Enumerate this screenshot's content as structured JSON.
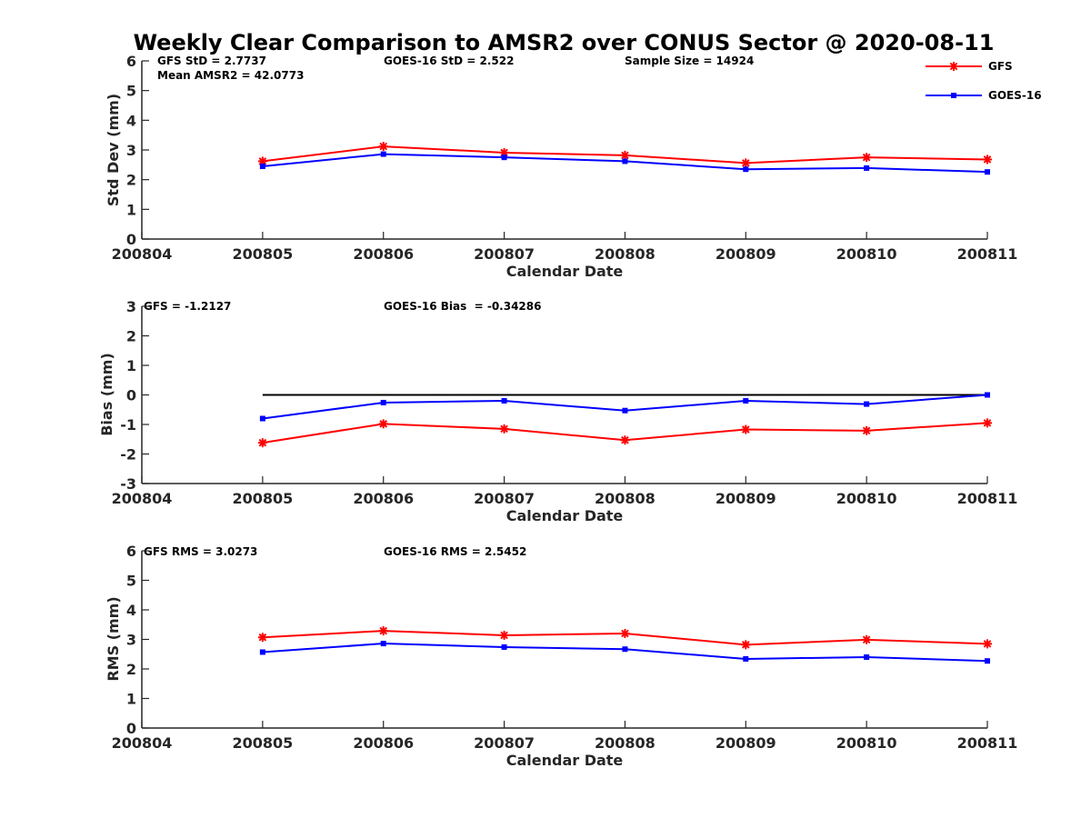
{
  "figure_title": "Weekly Clear Comparison to AMSR2 over CONUS Sector @ 2020-08-11",
  "legend": {
    "placement": "top-right",
    "entries": [
      {
        "label": "GFS",
        "color": "#ff0000",
        "marker": "asterisk"
      },
      {
        "label": "GOES-16",
        "color": "#0000ff",
        "marker": "square"
      }
    ]
  },
  "colors": {
    "gfs": "#ff0000",
    "goes": "#0000ff",
    "zero_line": "#000000",
    "axis": "#262626"
  },
  "chart_data": [
    {
      "type": "line",
      "title": "Weekly Clear Comparison to AMSR2 over CONUS Sector @ 2020-08-11",
      "xlabel": "Calendar Date",
      "ylabel": "Std Dev (mm)",
      "categories": [
        "200804",
        "200805",
        "200806",
        "200807",
        "200808",
        "200809",
        "200810",
        "200811"
      ],
      "ylim": [
        0,
        6
      ],
      "yticks": [
        "0",
        "1",
        "2",
        "3",
        "4",
        "5",
        "6"
      ],
      "grid": false,
      "annotations": [
        "GFS StD = 2.7737",
        "GOES-16 StD = 2.522",
        "Sample Size = 14924",
        "Mean AMSR2 = 42.0773"
      ],
      "series": [
        {
          "name": "GFS",
          "x": [
            "200805",
            "200806",
            "200807",
            "200808",
            "200809",
            "200810",
            "200811"
          ],
          "values": [
            2.62,
            3.12,
            2.91,
            2.82,
            2.56,
            2.75,
            2.68
          ]
        },
        {
          "name": "GOES-16",
          "x": [
            "200805",
            "200806",
            "200807",
            "200808",
            "200809",
            "200810",
            "200811"
          ],
          "values": [
            2.45,
            2.86,
            2.75,
            2.62,
            2.35,
            2.39,
            2.26
          ]
        }
      ]
    },
    {
      "type": "line",
      "xlabel": "Calendar Date",
      "ylabel": "Bias (mm)",
      "categories": [
        "200804",
        "200805",
        "200806",
        "200807",
        "200808",
        "200809",
        "200810",
        "200811"
      ],
      "ylim": [
        -3,
        3
      ],
      "yticks": [
        "-3",
        "-2",
        "-1",
        "0",
        "1",
        "2",
        "3"
      ],
      "grid": false,
      "zero_line": {
        "y": 0,
        "from": "200805",
        "to": "200811"
      },
      "annotations": [
        "GFS = -1.2127",
        "GOES-16 Bias  = -0.34286"
      ],
      "series": [
        {
          "name": "GFS",
          "x": [
            "200805",
            "200806",
            "200807",
            "200808",
            "200809",
            "200810",
            "200811"
          ],
          "values": [
            -1.62,
            -0.98,
            -1.15,
            -1.53,
            -1.17,
            -1.21,
            -0.95
          ]
        },
        {
          "name": "GOES-16",
          "x": [
            "200805",
            "200806",
            "200807",
            "200808",
            "200809",
            "200810",
            "200811"
          ],
          "values": [
            -0.8,
            -0.26,
            -0.2,
            -0.53,
            -0.2,
            -0.31,
            0.0
          ]
        }
      ]
    },
    {
      "type": "line",
      "xlabel": "Calendar Date",
      "ylabel": "RMS (mm)",
      "categories": [
        "200804",
        "200805",
        "200806",
        "200807",
        "200808",
        "200809",
        "200810",
        "200811"
      ],
      "ylim": [
        0,
        6
      ],
      "yticks": [
        "0",
        "1",
        "2",
        "3",
        "4",
        "5",
        "6"
      ],
      "grid": false,
      "annotations": [
        "GFS RMS = 3.0273",
        "GOES-16 RMS = 2.5452"
      ],
      "series": [
        {
          "name": "GFS",
          "x": [
            "200805",
            "200806",
            "200807",
            "200808",
            "200809",
            "200810",
            "200811"
          ],
          "values": [
            3.07,
            3.29,
            3.14,
            3.2,
            2.82,
            2.99,
            2.85
          ]
        },
        {
          "name": "GOES-16",
          "x": [
            "200805",
            "200806",
            "200807",
            "200808",
            "200809",
            "200810",
            "200811"
          ],
          "values": [
            2.57,
            2.86,
            2.74,
            2.67,
            2.34,
            2.4,
            2.27
          ]
        }
      ]
    }
  ]
}
